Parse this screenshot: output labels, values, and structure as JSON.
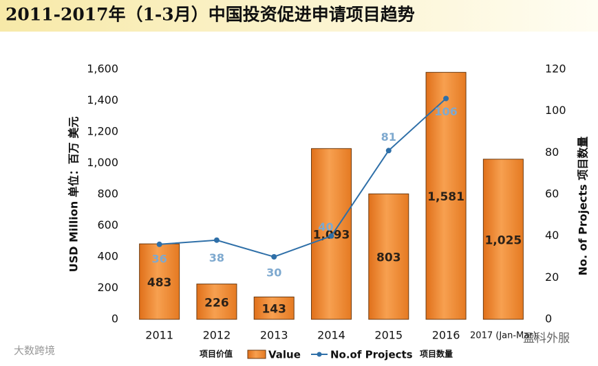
{
  "chart_data": {
    "type": "bar_line",
    "title": "2011-2017年（1-3月）中国投资促进申请项目趋势",
    "categories": [
      "2011",
      "2012",
      "2013",
      "2014",
      "2015",
      "2016",
      "2017 (Jan-Mar)"
    ],
    "series": [
      {
        "name": "Value",
        "name_cn": "项目价值",
        "color": "#f08a30",
        "type": "bar",
        "values": [
          483,
          226,
          143,
          1093,
          803,
          1581,
          1025
        ],
        "value_labels": [
          "483",
          "226",
          "143",
          "1,093",
          "803",
          "1,581",
          "1,025"
        ]
      },
      {
        "name": "No.of Projects",
        "name_cn": "项目数量",
        "color": "#2e6fa8",
        "type": "line",
        "axis": "y2",
        "values": [
          36,
          38,
          30,
          40,
          81,
          106,
          null
        ]
      }
    ],
    "ylabel": "USD Million 单位：百万 美元",
    "y2label": "No. of Projects 项目数量",
    "ylim": [
      0,
      1600
    ],
    "yticks": [
      0,
      200,
      400,
      600,
      800,
      {
        "value": 1000,
        "label": "1,000"
      },
      {
        "value": 1200,
        "label": "1,200"
      },
      {
        "value": 1400,
        "label": "1,400"
      },
      {
        "value": 1600,
        "label": "1,600"
      }
    ],
    "y2lim": [
      0,
      120
    ],
    "y2ticks": [
      0,
      20,
      40,
      60,
      80,
      100,
      120
    ],
    "watermarks": [
      "大数跨境",
      "盈科外服"
    ]
  }
}
